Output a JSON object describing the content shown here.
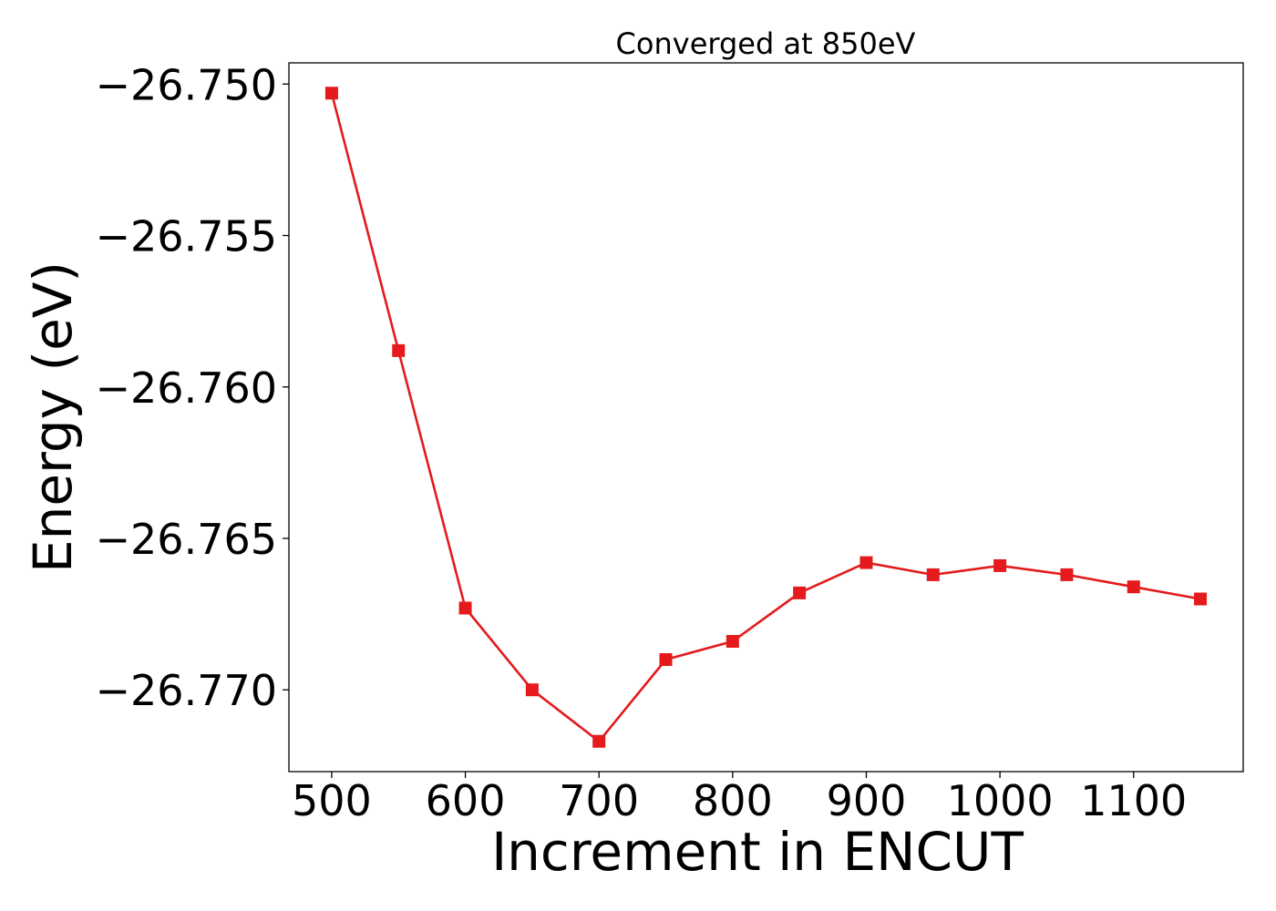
{
  "chart_data": {
    "type": "line",
    "title": "Converged at 850eV",
    "xlabel": "Increment in ENCUT",
    "ylabel": "Energy (eV)",
    "x": [
      500,
      550,
      600,
      650,
      700,
      750,
      800,
      850,
      900,
      950,
      1000,
      1050,
      1100,
      1150
    ],
    "series": [
      {
        "values": [
          -26.7503,
          -26.7588,
          -26.7673,
          -26.77,
          -26.7717,
          -26.769,
          -26.7684,
          -26.7668,
          -26.7658,
          -26.7662,
          -26.7659,
          -26.7662,
          -26.7666,
          -26.767
        ],
        "color": "#e41a1c",
        "marker": "square"
      }
    ],
    "xticks": [
      500,
      600,
      700,
      800,
      900,
      1000,
      1100
    ],
    "xtick_labels": [
      "500",
      "600",
      "700",
      "800",
      "900",
      "1000",
      "1100"
    ],
    "yticks": [
      -26.75,
      -26.755,
      -26.76,
      -26.765,
      -26.77
    ],
    "ytick_labels": [
      "−26.750",
      "−26.755",
      "−26.760",
      "−26.765",
      "−26.770"
    ],
    "xlim": [
      468,
      1182
    ],
    "ylim": [
      -26.7727,
      -26.7493
    ],
    "grid": false,
    "legend": false
  }
}
